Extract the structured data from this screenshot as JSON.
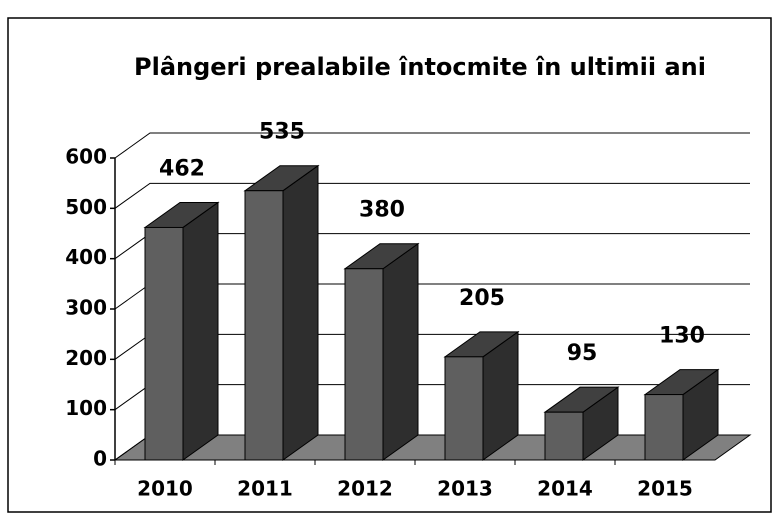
{
  "chart_data": {
    "type": "bar3d",
    "title": "Plângeri prealabile întocmite în ultimii ani",
    "categories": [
      "2010",
      "2011",
      "2012",
      "2013",
      "2014",
      "2015"
    ],
    "values": [
      462,
      535,
      380,
      205,
      95,
      130
    ],
    "color": "#5f5f5f",
    "ylim": [
      0,
      600
    ],
    "yticks": [
      0,
      100,
      200,
      300,
      400,
      500,
      600
    ],
    "grid": true
  }
}
